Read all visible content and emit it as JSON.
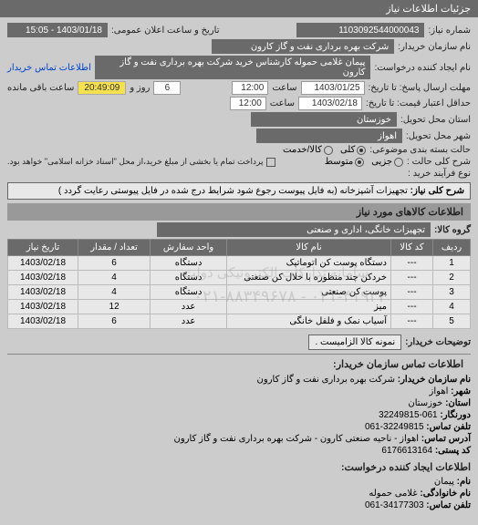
{
  "header": "جزئیات اطلاعات نیاز",
  "need_number_label": "شماره نیاز:",
  "need_number": "1103092544000043",
  "pub_date_label": "تاریخ و ساعت اعلان عمومی:",
  "pub_date": "1403/01/18 - 15:05",
  "buyer_label": "نام سازمان خریدار:",
  "buyer": "شرکت بهره برداری نفت و گاز کارون",
  "creator_label": "نام ایجاد کننده درخواست:",
  "creator": "پیمان غلامی حموله کارشناس خرید شرکت بهره برداری نفت و گاز کارون",
  "contact_link": "اطلاعات تماس خریدار",
  "deadline_send_label": "مهلت ارسال پاسخ: تا تاریخ:",
  "deadline_send_date": "1403/01/25",
  "time_label": "ساعت",
  "deadline_send_time": "12:00",
  "remain_days": "6",
  "remain_days_label": "روز و",
  "remain_time": "20:49:09",
  "remain_label": "ساعت باقی مانده",
  "validity_label": "حداقل اعتبار قیمت: تا تاریخ:",
  "validity_date": "1403/02/18",
  "validity_time": "12:00",
  "province_label": "استان محل تحویل:",
  "province": "خوزستان",
  "city_label": "شهر محل تحویل:",
  "city": "اهواز",
  "pkg_label": "حالت بسته بندی موضوعی:",
  "pkg_opts": [
    "کلی",
    "کالا/خدمت"
  ],
  "pkg_selected": 0,
  "detail_label": "شرح کلی حالت :",
  "detail_opts": [
    "جزیی",
    "متوسط"
  ],
  "payment_note": "پرداخت تمام یا بخشی از مبلغ خرید،از محل \"اسناد خزانه اسلامی\" خواهد بود.",
  "process_label": "نوع فرآیند خرید :",
  "need_title_label": "شرح کلی نیاز:",
  "need_title": "تجهیزات آشپزخانه (به فایل پیوست رجوع شود شرایط درج شده در فایل پیوستی رعایت گردد )",
  "goods_section": "اطلاعات کالاهای مورد نیاز",
  "group_label": "گروه کالا:",
  "group": "تجهیزات خانگی، اداری و صنعتی",
  "columns": [
    "ردیف",
    "کد کالا",
    "نام کالا",
    "واحد سفارش",
    "تعداد / مقدار",
    "تاریخ نیاز"
  ],
  "rows": [
    [
      "1",
      "---",
      "دستگاه پوست کن اتوماتیک",
      "دستگاه",
      "6",
      "1403/02/18"
    ],
    [
      "2",
      "---",
      "خردکن چند منظوره با خلال کن صنعتی",
      "دستگاه",
      "4",
      "1403/02/18"
    ],
    [
      "3",
      "---",
      "پوست کن صنعتی",
      "دستگاه",
      "4",
      "1403/02/18"
    ],
    [
      "4",
      "---",
      "میز",
      "عدد",
      "12",
      "1403/02/18"
    ],
    [
      "5",
      "---",
      "آسیاب نمک و فلفل خانگی",
      "عدد",
      "6",
      "1403/02/18"
    ]
  ],
  "buyer_note_label": "توضیحات خریدار:",
  "buyer_note": "نمونه کالا الزامیست .",
  "contact_section": "اطلاعات تماس سازمان خریدار:",
  "org_name_label": "نام سازمان خریدار:",
  "org_name": "شرکت بهره برداری نفت و گاز کارون",
  "city2_label": "شهر:",
  "city2": "اهواز",
  "province2_label": "استان:",
  "province2": "خوزستان",
  "fax_label": "دورنگار:",
  "fax": "061-32249815",
  "phone_label": "تلفن تماس:",
  "phone": "32249815-061",
  "addr_label": "آدرس تماس:",
  "addr": "اهواز - ناحیه صنعتی کارون - شرکت بهره برداری نفت و گاز کارون",
  "postal_label": "کد پستی:",
  "postal": "6176613164",
  "req_contact_section": "اطلاعات ایجاد کننده درخواست:",
  "name_label": "نام:",
  "name_val": "پیمان",
  "family_label": "نام خانوادگی:",
  "family_val": "غلامی حموله",
  "phone2_label": "تلفن تماس:",
  "phone2": "34177303-061",
  "wm_text": "سامانه تدارکات الکترونیکی دولت",
  "wm_num": "۰۲۱-۴۱۹۳۴ - ۰۲۱-۸۸۳۴۹۶۷۸"
}
